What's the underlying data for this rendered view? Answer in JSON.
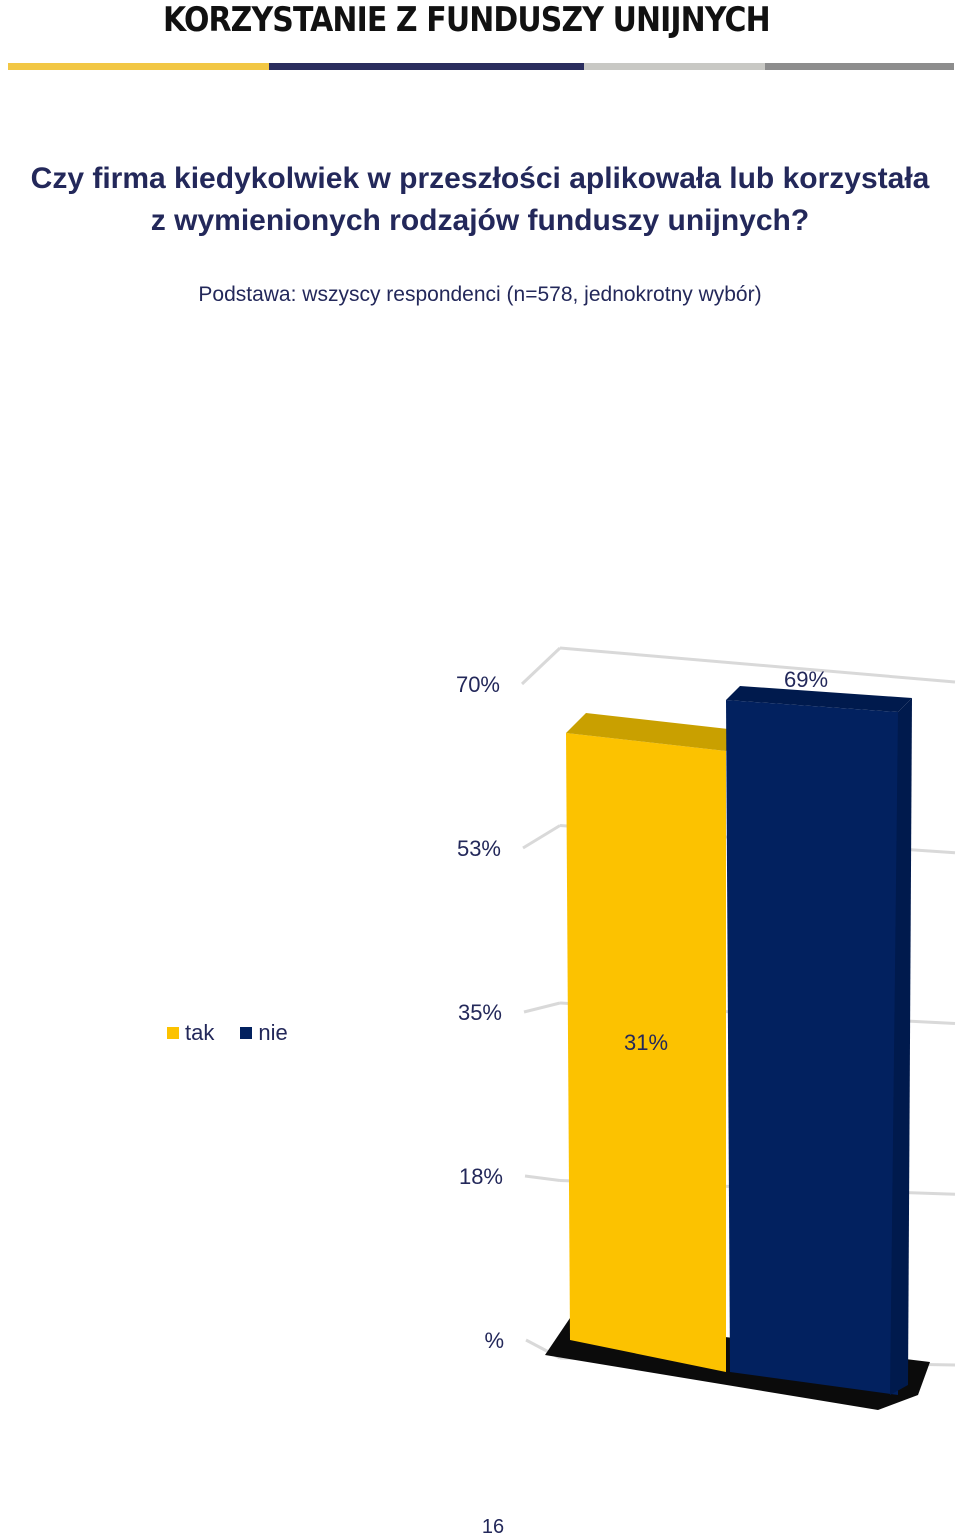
{
  "header": {
    "title": "KORZYSTANIE Z FUNDUSZY UNIJNYCH",
    "stripe_colors": [
      "#f2c744",
      "#2a2d5e",
      "#c8c8c4",
      "#8d8d8d"
    ]
  },
  "question": {
    "line1": "Czy firma kiedykolwiek w przeszłości aplikowała lub korzystała",
    "line2": "z wymienionych rodzajów funduszy unijnych?"
  },
  "base_note": "Podstawa: wszyscy respondenci (n=578, jednokrotny wybór)",
  "chart_data": {
    "type": "bar",
    "categories": [
      "tak",
      "nie"
    ],
    "values": [
      31,
      69
    ],
    "value_labels": [
      "31%",
      "69%"
    ],
    "colors": [
      "#fcc200",
      "#02215f"
    ],
    "ylim": [
      0,
      70
    ],
    "ytick_labels": [
      "%",
      "18%",
      "35%",
      "53%",
      "70%"
    ],
    "ytick_values": [
      0,
      17.5,
      35,
      52.5,
      70
    ],
    "grid": true,
    "legend": {
      "position": "left",
      "items": [
        {
          "label": "tak",
          "color": "#fcc200"
        },
        {
          "label": "nie",
          "color": "#02215f"
        }
      ]
    }
  },
  "page_number": "16"
}
